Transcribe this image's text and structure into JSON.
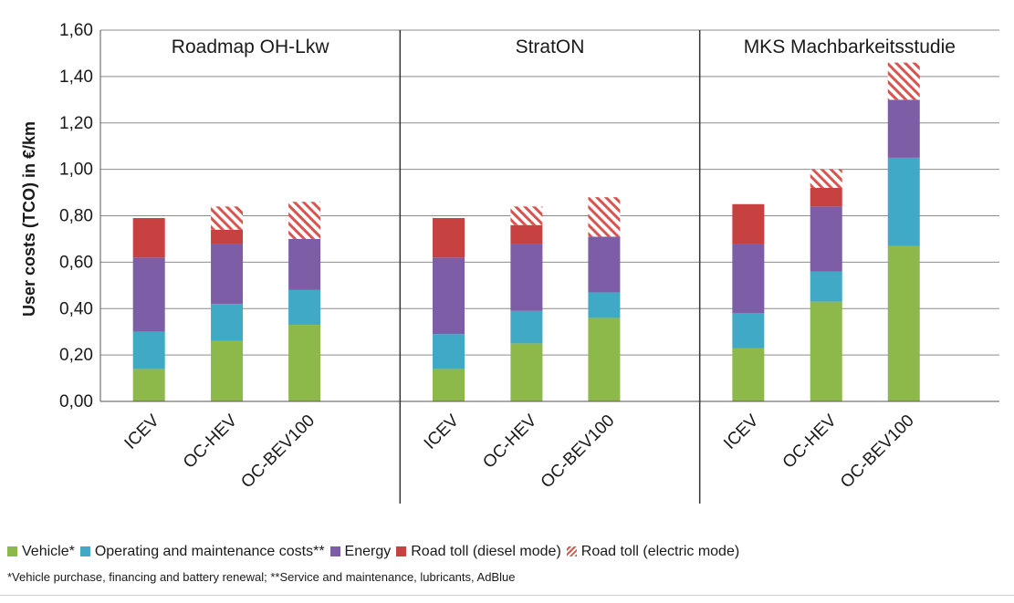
{
  "chart_data": {
    "type": "bar",
    "stacked": true,
    "ylabel": "User costs (TCO) in €/km",
    "ylim": [
      0,
      1.6
    ],
    "yticks": [
      "0,00",
      "0,20",
      "0,40",
      "0,60",
      "0,80",
      "1,00",
      "1,20",
      "1,40",
      "1,60"
    ],
    "grid": true,
    "legend_position": "bottom",
    "panels": [
      {
        "title": "Roadmap OH-Lkw",
        "categories": [
          "ICEV",
          "OC-HEV",
          "OC-BEV100"
        ],
        "series": [
          {
            "name": "Vehicle*",
            "values": [
              0.14,
              0.26,
              0.33
            ]
          },
          {
            "name": "Operating and maintenance costs**",
            "values": [
              0.16,
              0.16,
              0.15
            ]
          },
          {
            "name": "Energy",
            "values": [
              0.32,
              0.26,
              0.22
            ]
          },
          {
            "name": "Road toll (diesel mode)",
            "values": [
              0.17,
              0.06,
              0.0
            ]
          },
          {
            "name": "Road toll (electric mode)",
            "values": [
              0.0,
              0.1,
              0.16
            ]
          }
        ]
      },
      {
        "title": "StratON",
        "categories": [
          "ICEV",
          "OC-HEV",
          "OC-BEV100"
        ],
        "series": [
          {
            "name": "Vehicle*",
            "values": [
              0.14,
              0.25,
              0.36
            ]
          },
          {
            "name": "Operating and maintenance costs**",
            "values": [
              0.15,
              0.14,
              0.11
            ]
          },
          {
            "name": "Energy",
            "values": [
              0.33,
              0.29,
              0.24
            ]
          },
          {
            "name": "Road toll (diesel mode)",
            "values": [
              0.17,
              0.08,
              0.0
            ]
          },
          {
            "name": "Road toll (electric mode)",
            "values": [
              0.0,
              0.08,
              0.17
            ]
          }
        ]
      },
      {
        "title": "MKS Machbarkeitsstudie",
        "categories": [
          "ICEV",
          "OC-HEV",
          "OC-BEV100"
        ],
        "series": [
          {
            "name": "Vehicle*",
            "values": [
              0.23,
              0.43,
              0.67
            ]
          },
          {
            "name": "Operating and maintenance costs**",
            "values": [
              0.15,
              0.13,
              0.38
            ]
          },
          {
            "name": "Energy",
            "values": [
              0.3,
              0.28,
              0.25
            ]
          },
          {
            "name": "Road toll (diesel mode)",
            "values": [
              0.17,
              0.08,
              0.0
            ]
          },
          {
            "name": "Road toll (electric mode)",
            "values": [
              0.0,
              0.08,
              0.16
            ]
          }
        ]
      }
    ],
    "colors": {
      "Vehicle*": "#8db84a",
      "Operating and maintenance costs**": "#3fa9c6",
      "Energy": "#7d5ea6",
      "Road toll (diesel mode)": "#c6413f",
      "Road toll (electric mode)": "#d9534f"
    }
  },
  "legend": {
    "items": [
      {
        "label": "Vehicle*",
        "color": "#8db84a",
        "pattern": "solid"
      },
      {
        "label": "Operating and maintenance costs**",
        "color": "#3fa9c6",
        "pattern": "solid"
      },
      {
        "label": "Energy",
        "color": "#7d5ea6",
        "pattern": "solid"
      },
      {
        "label": "Road toll (diesel mode)",
        "color": "#c6413f",
        "pattern": "solid"
      },
      {
        "label": "Road toll (electric mode)",
        "color": "#d9534f",
        "pattern": "hatched"
      }
    ],
    "footnote": "*Vehicle purchase, financing and battery renewal; **Service and maintenance, lubricants, AdBlue"
  }
}
